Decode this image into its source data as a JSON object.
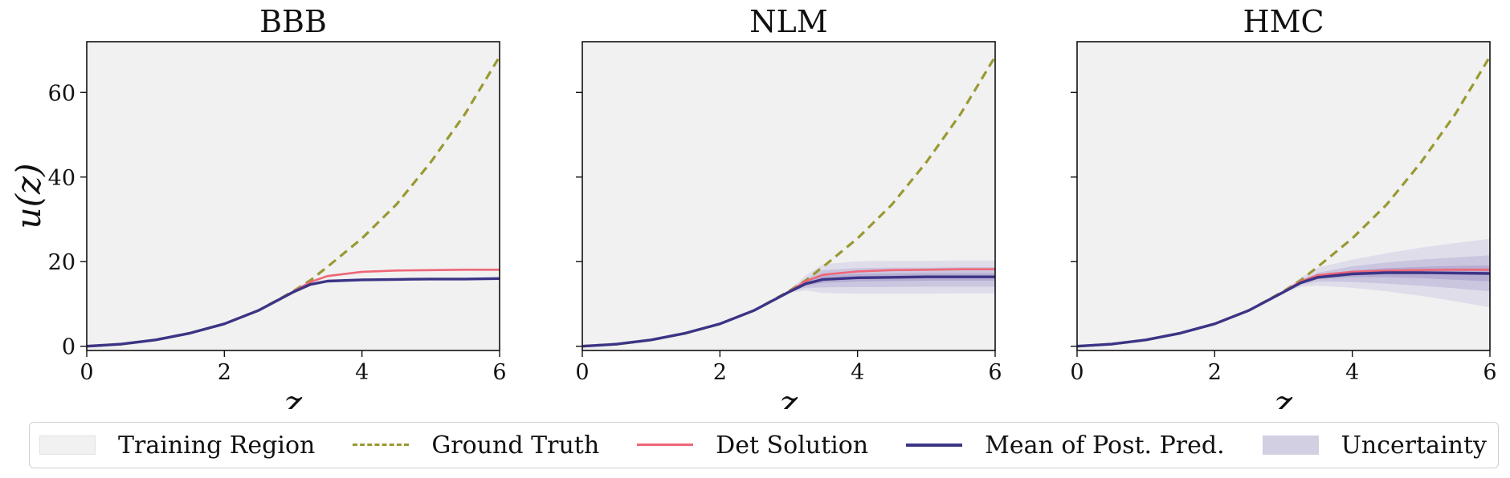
{
  "figure": {
    "ylabel": "u(z)",
    "xlabel": "z",
    "colors": {
      "training_region": "#f1f1f1",
      "ground_truth": "#999933",
      "det_solution": "#ee6677",
      "mean_post_pred": "#3b3486",
      "uncertainty": "#7b6fb0"
    }
  },
  "legend": {
    "items": [
      {
        "label": "Training Region",
        "kind": "patch",
        "color": "#f1f1f1"
      },
      {
        "label": "Ground Truth",
        "kind": "dashed",
        "color": "#999933"
      },
      {
        "label": "Det Solution",
        "kind": "line",
        "color": "#ee6677"
      },
      {
        "label": "Mean of Post. Pred.",
        "kind": "line",
        "color": "#3b3486"
      },
      {
        "label": "Uncertainty",
        "kind": "patch",
        "color": "#d2cfe2"
      }
    ]
  },
  "chart_data": [
    {
      "type": "line",
      "title": "BBB",
      "xlabel": "z",
      "ylabel": "u(z)",
      "xlim": [
        0,
        6
      ],
      "ylim": [
        -1,
        72
      ],
      "xticks": [
        0,
        2,
        4,
        6
      ],
      "yticks": [
        0,
        20,
        40,
        60
      ],
      "grid": false,
      "training_region": [
        0,
        6
      ],
      "x": [
        0,
        0.5,
        1,
        1.5,
        2,
        2.5,
        3,
        3.25,
        3.5,
        4,
        4.5,
        5,
        5.5,
        6
      ],
      "series": [
        {
          "name": "Ground Truth",
          "style": "dashed",
          "values": [
            0,
            0.5,
            1.5,
            3.1,
            5.3,
            8.5,
            13.0,
            15.6,
            18.8,
            25.5,
            33.5,
            43.5,
            55.0,
            68.5
          ]
        },
        {
          "name": "Det Solution",
          "style": "solid",
          "values": [
            0,
            0.5,
            1.5,
            3.1,
            5.3,
            8.5,
            12.9,
            15.2,
            16.6,
            17.6,
            17.9,
            18.0,
            18.1,
            18.1
          ]
        },
        {
          "name": "Mean of Post. Pred.",
          "style": "solid",
          "values": [
            0,
            0.5,
            1.5,
            3.1,
            5.3,
            8.5,
            12.8,
            14.6,
            15.4,
            15.7,
            15.8,
            15.9,
            15.9,
            16.0
          ]
        }
      ],
      "uncertainty_bands": []
    },
    {
      "type": "line",
      "title": "NLM",
      "xlabel": "z",
      "xlim": [
        0,
        6
      ],
      "ylim": [
        -1,
        72
      ],
      "xticks": [
        0,
        2,
        4,
        6
      ],
      "yticks": [
        0,
        20,
        40,
        60
      ],
      "grid": false,
      "training_region": [
        0,
        6
      ],
      "x": [
        0,
        0.5,
        1,
        1.5,
        2,
        2.5,
        3,
        3.25,
        3.5,
        4,
        4.5,
        5,
        5.5,
        6
      ],
      "series": [
        {
          "name": "Ground Truth",
          "style": "dashed",
          "values": [
            0,
            0.5,
            1.5,
            3.1,
            5.3,
            8.5,
            13.0,
            15.6,
            18.8,
            25.5,
            33.5,
            43.5,
            55.0,
            68.5
          ]
        },
        {
          "name": "Det Solution",
          "style": "solid",
          "values": [
            0,
            0.5,
            1.5,
            3.1,
            5.3,
            8.5,
            12.9,
            15.4,
            16.9,
            17.7,
            18.0,
            18.1,
            18.2,
            18.2
          ]
        },
        {
          "name": "Mean of Post. Pred.",
          "style": "solid",
          "values": [
            0,
            0.5,
            1.5,
            3.1,
            5.3,
            8.5,
            12.8,
            14.8,
            15.8,
            16.2,
            16.3,
            16.4,
            16.4,
            16.4
          ]
        }
      ],
      "uncertainty_bands": [
        {
          "level": 3,
          "lower": [
            0,
            0.5,
            1.5,
            3.1,
            5.3,
            8.5,
            12.6,
            13.2,
            12.6,
            12.4,
            12.4,
            12.4,
            12.5,
            12.5
          ],
          "upper": [
            0,
            0.5,
            1.5,
            3.1,
            5.3,
            8.5,
            13.2,
            16.8,
            19.4,
            20.1,
            20.2,
            20.2,
            20.3,
            20.3
          ]
        },
        {
          "level": 2,
          "lower": [
            0,
            0.5,
            1.5,
            3.1,
            5.3,
            8.5,
            12.7,
            13.8,
            13.9,
            14.0,
            14.0,
            14.1,
            14.1,
            14.1
          ],
          "upper": [
            0,
            0.5,
            1.5,
            3.1,
            5.3,
            8.5,
            13.0,
            16.0,
            18.0,
            18.5,
            18.6,
            18.6,
            18.7,
            18.7
          ]
        },
        {
          "level": 1,
          "lower": [
            0,
            0.5,
            1.5,
            3.1,
            5.3,
            8.5,
            12.8,
            14.3,
            15.0,
            15.3,
            15.4,
            15.5,
            15.5,
            15.5
          ],
          "upper": [
            0,
            0.5,
            1.5,
            3.1,
            5.3,
            8.5,
            12.9,
            15.3,
            16.7,
            17.1,
            17.2,
            17.3,
            17.3,
            17.3
          ]
        }
      ]
    },
    {
      "type": "line",
      "title": "HMC",
      "xlabel": "z",
      "xlim": [
        0,
        6
      ],
      "ylim": [
        -1,
        72
      ],
      "xticks": [
        0,
        2,
        4,
        6
      ],
      "yticks": [
        0,
        20,
        40,
        60
      ],
      "grid": false,
      "training_region": [
        0,
        6
      ],
      "x": [
        0,
        0.5,
        1,
        1.5,
        2,
        2.5,
        3,
        3.25,
        3.5,
        4,
        4.5,
        5,
        5.5,
        6
      ],
      "series": [
        {
          "name": "Ground Truth",
          "style": "dashed",
          "values": [
            0,
            0.5,
            1.5,
            3.1,
            5.3,
            8.5,
            13.0,
            15.6,
            18.8,
            25.5,
            33.5,
            43.5,
            55.0,
            68.5
          ]
        },
        {
          "name": "Det Solution",
          "style": "solid",
          "values": [
            0,
            0.5,
            1.5,
            3.1,
            5.3,
            8.5,
            12.9,
            15.3,
            16.8,
            17.6,
            17.9,
            18.0,
            18.1,
            18.1
          ]
        },
        {
          "name": "Mean of Post. Pred.",
          "style": "solid",
          "values": [
            0,
            0.5,
            1.5,
            3.1,
            5.3,
            8.5,
            12.8,
            15.0,
            16.3,
            17.1,
            17.4,
            17.4,
            17.3,
            17.2
          ]
        }
      ],
      "uncertainty_bands": [
        {
          "level": 3,
          "lower": [
            0,
            0.5,
            1.5,
            3.1,
            5.3,
            8.5,
            12.6,
            14.0,
            14.3,
            13.8,
            13.0,
            11.9,
            10.6,
            9.2
          ],
          "upper": [
            0,
            0.5,
            1.5,
            3.1,
            5.3,
            8.5,
            13.1,
            16.2,
            18.6,
            20.5,
            22.0,
            23.3,
            24.4,
            25.4
          ]
        },
        {
          "level": 2,
          "lower": [
            0,
            0.5,
            1.5,
            3.1,
            5.3,
            8.5,
            12.7,
            14.5,
            15.3,
            15.2,
            14.8,
            14.3,
            13.7,
            13.0
          ],
          "upper": [
            0,
            0.5,
            1.5,
            3.1,
            5.3,
            8.5,
            13.0,
            15.7,
            17.4,
            18.9,
            19.8,
            20.5,
            21.0,
            21.5
          ]
        },
        {
          "level": 1,
          "lower": [
            0,
            0.5,
            1.5,
            3.1,
            5.3,
            8.5,
            12.75,
            14.8,
            15.9,
            16.3,
            16.3,
            16.1,
            15.7,
            15.3
          ],
          "upper": [
            0,
            0.5,
            1.5,
            3.1,
            5.3,
            8.5,
            12.9,
            15.3,
            16.8,
            17.9,
            18.5,
            18.8,
            19.0,
            19.1
          ]
        }
      ]
    }
  ]
}
